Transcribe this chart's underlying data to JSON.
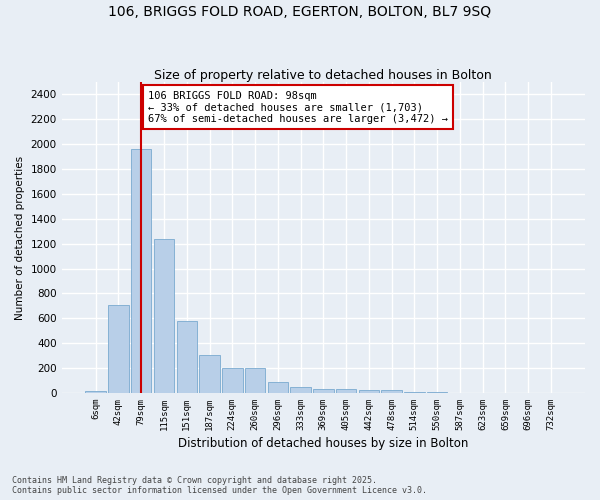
{
  "title1": "106, BRIGGS FOLD ROAD, EGERTON, BOLTON, BL7 9SQ",
  "title2": "Size of property relative to detached houses in Bolton",
  "xlabel": "Distribution of detached houses by size in Bolton",
  "ylabel": "Number of detached properties",
  "categories": [
    "6sqm",
    "42sqm",
    "79sqm",
    "115sqm",
    "151sqm",
    "187sqm",
    "224sqm",
    "260sqm",
    "296sqm",
    "333sqm",
    "369sqm",
    "405sqm",
    "442sqm",
    "478sqm",
    "514sqm",
    "550sqm",
    "587sqm",
    "623sqm",
    "659sqm",
    "696sqm",
    "732sqm"
  ],
  "values": [
    15,
    710,
    1960,
    1240,
    580,
    305,
    200,
    200,
    85,
    45,
    35,
    35,
    20,
    20,
    8,
    5,
    2,
    1,
    0,
    0,
    0
  ],
  "bar_color": "#b8cfe8",
  "bar_edge_color": "#7aaad0",
  "vline_x": 2,
  "vline_color": "#cc0000",
  "annotation_text": "106 BRIGGS FOLD ROAD: 98sqm\n← 33% of detached houses are smaller (1,703)\n67% of semi-detached houses are larger (3,472) →",
  "annotation_box_color": "#ffffff",
  "annotation_box_edge": "#cc0000",
  "ylim": [
    0,
    2500
  ],
  "yticks": [
    0,
    200,
    400,
    600,
    800,
    1000,
    1200,
    1400,
    1600,
    1800,
    2000,
    2200,
    2400
  ],
  "bg_color": "#e8eef5",
  "grid_color": "#ffffff",
  "footer": "Contains HM Land Registry data © Crown copyright and database right 2025.\nContains public sector information licensed under the Open Government Licence v3.0.",
  "title_fontsize": 10,
  "subtitle_fontsize": 9,
  "annot_fontsize": 7.5
}
